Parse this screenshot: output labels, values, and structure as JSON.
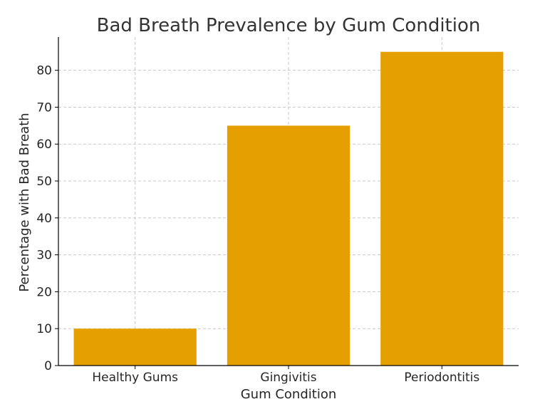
{
  "chart_data": {
    "type": "bar",
    "title": "Bad Breath Prevalence by Gum Condition",
    "xlabel": "Gum Condition",
    "ylabel": "Percentage with Bad Breath",
    "categories": [
      "Healthy Gums",
      "Gingivitis",
      "Periodontitis"
    ],
    "values": [
      10,
      65,
      85
    ],
    "ylim": [
      0,
      89
    ],
    "yticks": [
      0,
      10,
      20,
      30,
      40,
      50,
      60,
      70,
      80
    ],
    "grid": true,
    "legend": "none",
    "bar_color": "#E5A000",
    "grid_color": "#c8c8c8",
    "axis_color": "#000000"
  }
}
